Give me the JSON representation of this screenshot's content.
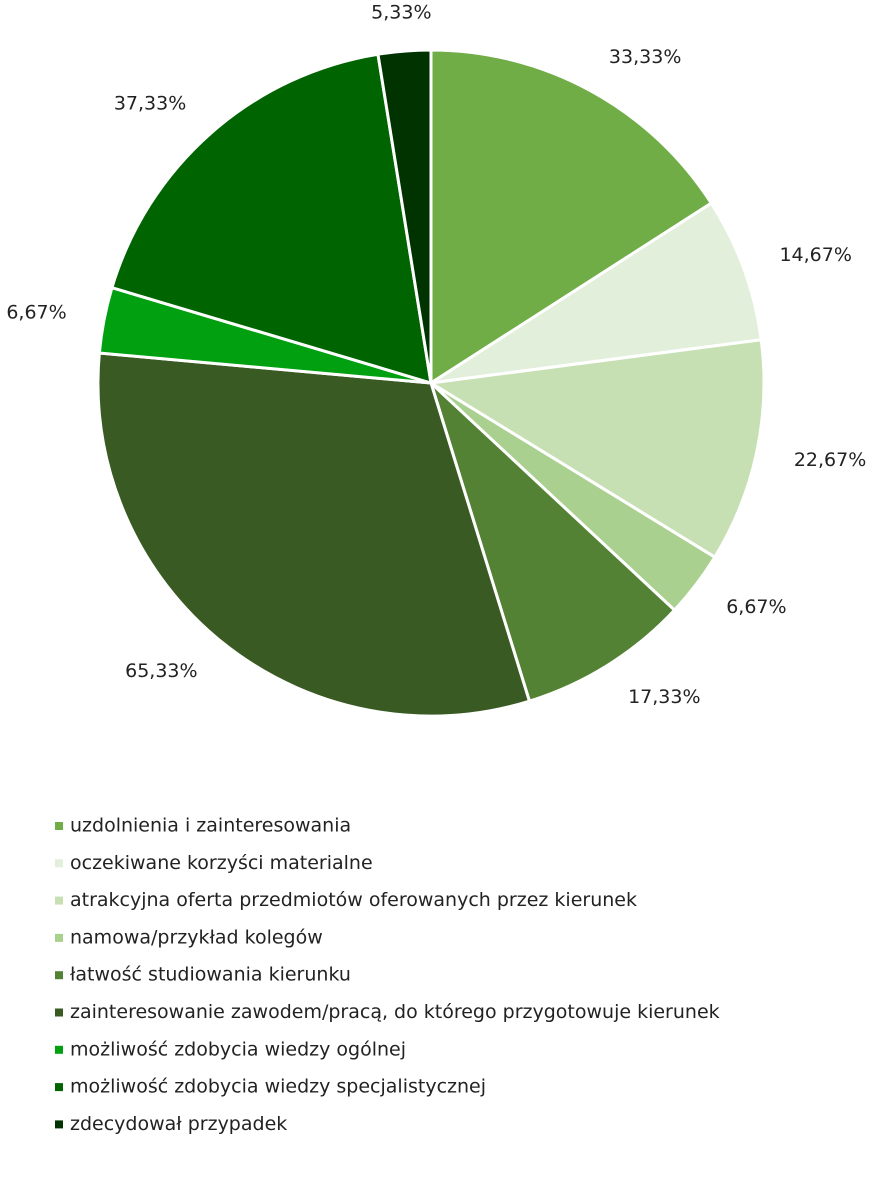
{
  "chart_data": {
    "type": "pie",
    "categories": [
      "uzdolnienia i zainteresowania",
      "oczekiwane korzyści materialne",
      "atrakcyjna oferta przedmiotów oferowanych przez kierunek",
      "namowa/przykład kolegów",
      "łatwość studiowania kierunku",
      "zainteresowanie zawodem/pracą, do którego przygotowuje kierunek",
      "możliwość zdobycia wiedzy ogólnej",
      "możliwość zdobycia wiedzy specjalistycznej",
      "zdecydował przypadek"
    ],
    "values": [
      33.33,
      14.67,
      22.67,
      6.67,
      17.33,
      65.33,
      6.67,
      37.33,
      5.33
    ],
    "value_labels": [
      "33,33%",
      "14,67%",
      "22,67%",
      "6,67%",
      "17,33%",
      "65,33%",
      "6,67%",
      "37,33%",
      "5,33%"
    ],
    "colors": [
      "#70ad47",
      "#e2efda",
      "#c6e0b4",
      "#a9d08e",
      "#548235",
      "#3a5a24",
      "#00a010",
      "#006400",
      "#003300"
    ],
    "legend": "bottom"
  }
}
